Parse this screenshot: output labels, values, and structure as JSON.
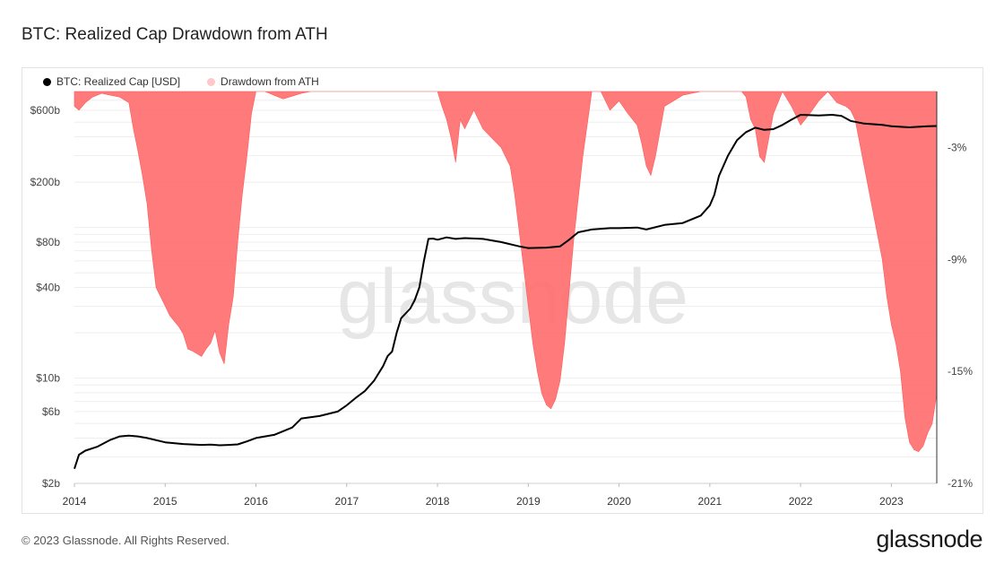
{
  "title": "BTC: Realized Cap Drawdown from ATH",
  "footer": "© 2023 Glassnode. All Rights Reserved.",
  "brand": "glassnode",
  "watermark": "glassnode",
  "chart_data": {
    "type": "line",
    "title": "BTC: Realized Cap Drawdown from ATH",
    "legend_position": "top-left",
    "grid": true,
    "x_ticks": [
      "2014",
      "2015",
      "2016",
      "2017",
      "2018",
      "2019",
      "2020",
      "2021",
      "2022",
      "2023"
    ],
    "y_left": {
      "scale": "log",
      "ticks": [
        "$2b",
        "$6b",
        "$10b",
        "$40b",
        "$80b",
        "$200b",
        "$600b"
      ],
      "range_usd_billions": [
        2,
        800
      ]
    },
    "y_right": {
      "ticks": [
        "-3%",
        "-9%",
        "-15%",
        "-21%"
      ],
      "range_percent": [
        0,
        -21
      ]
    },
    "series": [
      {
        "name": "BTC: Realized Cap [USD]",
        "color": "#000000",
        "axis": "left",
        "x": [
          2014.0,
          2014.05,
          2014.12,
          2014.25,
          2014.4,
          2014.5,
          2014.6,
          2014.7,
          2014.8,
          2015.0,
          2015.2,
          2015.4,
          2015.5,
          2015.6,
          2015.7,
          2015.8,
          2015.9,
          2016.0,
          2016.2,
          2016.4,
          2016.5,
          2016.7,
          2016.9,
          2017.0,
          2017.1,
          2017.2,
          2017.3,
          2017.4,
          2017.45,
          2017.5,
          2017.55,
          2017.6,
          2017.7,
          2017.75,
          2017.8,
          2017.85,
          2017.9,
          2017.95,
          2018.0,
          2018.1,
          2018.2,
          2018.3,
          2018.5,
          2018.7,
          2018.9,
          2019.0,
          2019.2,
          2019.35,
          2019.45,
          2019.55,
          2019.7,
          2019.9,
          2020.0,
          2020.2,
          2020.3,
          2020.5,
          2020.7,
          2020.9,
          2021.0,
          2021.05,
          2021.1,
          2021.2,
          2021.3,
          2021.4,
          2021.5,
          2021.6,
          2021.7,
          2021.8,
          2021.9,
          2022.0,
          2022.2,
          2022.35,
          2022.45,
          2022.55,
          2022.7,
          2022.9,
          2023.0,
          2023.2,
          2023.4,
          2023.5
        ],
        "values": [
          2.5,
          3.1,
          3.3,
          3.5,
          3.9,
          4.1,
          4.15,
          4.1,
          4.0,
          3.75,
          3.65,
          3.6,
          3.62,
          3.58,
          3.6,
          3.63,
          3.8,
          4.0,
          4.2,
          4.7,
          5.4,
          5.6,
          6.0,
          6.6,
          7.4,
          8.2,
          9.6,
          12.0,
          14.0,
          15.0,
          20.0,
          25.0,
          29.0,
          33.0,
          40.0,
          60.0,
          84.0,
          84.5,
          83.0,
          86.0,
          84.0,
          85.0,
          84.0,
          80.0,
          75.0,
          73.0,
          73.5,
          75.0,
          83.0,
          93.0,
          97.0,
          99.0,
          99.0,
          100.0,
          97.0,
          104.0,
          107.0,
          120.0,
          140.0,
          165.0,
          220.0,
          300.0,
          380.0,
          430.0,
          460.0,
          445.0,
          450.0,
          480.0,
          520.0,
          560.0,
          555.0,
          560.0,
          550.0,
          510.0,
          490.0,
          480.0,
          470.0,
          462.0,
          470.0,
          472.0
        ]
      },
      {
        "name": "Drawdown from ATH",
        "color": "#ff6b6b",
        "axis": "right",
        "x": [
          2014.0,
          2014.05,
          2014.12,
          2014.2,
          2014.3,
          2014.4,
          2014.5,
          2014.6,
          2014.65,
          2014.7,
          2014.75,
          2014.8,
          2014.85,
          2014.9,
          2015.0,
          2015.05,
          2015.1,
          2015.15,
          2015.2,
          2015.25,
          2015.3,
          2015.4,
          2015.45,
          2015.5,
          2015.55,
          2015.6,
          2015.65,
          2015.7,
          2015.75,
          2015.8,
          2015.85,
          2015.9,
          2015.95,
          2016.0,
          2016.1,
          2016.2,
          2016.3,
          2016.5,
          2016.6,
          2016.8,
          2017.0,
          2017.5,
          2017.8,
          2018.0,
          2018.05,
          2018.1,
          2018.15,
          2018.2,
          2018.25,
          2018.3,
          2018.35,
          2018.4,
          2018.5,
          2018.6,
          2018.7,
          2018.8,
          2018.85,
          2018.9,
          2018.95,
          2019.0,
          2019.05,
          2019.1,
          2019.15,
          2019.2,
          2019.25,
          2019.3,
          2019.35,
          2019.4,
          2019.5,
          2019.6,
          2019.7,
          2019.8,
          2019.9,
          2020.0,
          2020.1,
          2020.2,
          2020.25,
          2020.3,
          2020.35,
          2020.4,
          2020.5,
          2020.7,
          2020.9,
          2021.0,
          2021.2,
          2021.35,
          2021.4,
          2021.45,
          2021.5,
          2021.55,
          2021.6,
          2021.65,
          2021.7,
          2021.8,
          2021.9,
          2022.0,
          2022.1,
          2022.2,
          2022.3,
          2022.4,
          2022.5,
          2022.55,
          2022.6,
          2022.7,
          2022.8,
          2022.9,
          2022.95,
          2023.0,
          2023.05,
          2023.1,
          2023.15,
          2023.2,
          2023.25,
          2023.3,
          2023.35,
          2023.4,
          2023.45,
          2023.5
        ],
        "values": [
          -0.8,
          -1.0,
          -0.6,
          -0.3,
          -0.1,
          -0.2,
          -0.3,
          -0.6,
          -2.0,
          -3.2,
          -4.5,
          -6.0,
          -8.5,
          -10.5,
          -11.5,
          -12.0,
          -12.3,
          -12.6,
          -13.0,
          -13.8,
          -13.9,
          -14.2,
          -13.8,
          -13.5,
          -12.8,
          -14.0,
          -14.6,
          -12.5,
          -11.0,
          -8.0,
          -5.5,
          -3.5,
          -1.2,
          0.0,
          0.0,
          -0.2,
          -0.4,
          -0.1,
          0.0,
          0.0,
          0.0,
          0.0,
          0.0,
          0.0,
          -0.8,
          -1.5,
          -2.5,
          -3.8,
          -1.5,
          -2.0,
          -1.5,
          -1.0,
          -2.0,
          -2.5,
          -3.0,
          -4.0,
          -5.5,
          -7.5,
          -9.5,
          -11.5,
          -13.5,
          -15.0,
          -16.2,
          -16.8,
          -17.0,
          -16.5,
          -15.5,
          -13.5,
          -8.0,
          -3.5,
          0.0,
          0.0,
          -1.0,
          -0.5,
          -1.2,
          -1.8,
          -2.8,
          -4.0,
          -4.5,
          -3.5,
          -0.8,
          -0.2,
          0.0,
          0.0,
          0.0,
          0.0,
          -0.3,
          -1.5,
          -2.0,
          -3.5,
          -3.8,
          -2.5,
          -1.2,
          0.0,
          -0.8,
          -1.8,
          -1.2,
          -0.5,
          0.0,
          -0.6,
          -0.8,
          -1.0,
          -1.5,
          -4.0,
          -6.5,
          -9.0,
          -11.0,
          -12.5,
          -13.5,
          -15.0,
          -17.5,
          -18.8,
          -19.2,
          -19.3,
          -19.0,
          -18.3,
          -17.8,
          -16.2
        ]
      }
    ]
  }
}
